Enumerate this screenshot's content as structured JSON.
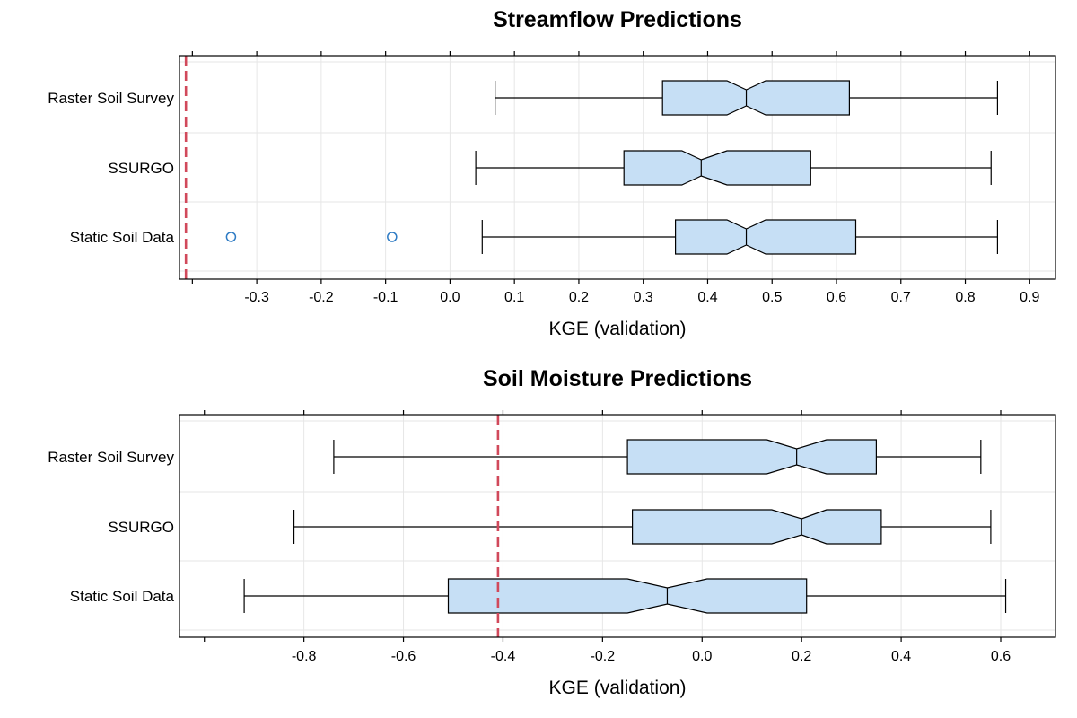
{
  "chart_data": [
    {
      "type": "box",
      "title": "Streamflow Predictions",
      "xlabel": "KGE (validation)",
      "xlim": [
        -0.42,
        0.94
      ],
      "xticks": [
        -0.3,
        -0.2,
        -0.1,
        0.0,
        0.1,
        0.2,
        0.3,
        0.4,
        0.5,
        0.6,
        0.7,
        0.8,
        0.9
      ],
      "xtick_labels": [
        "-0.3",
        "-0.2",
        "-0.1",
        "0.0",
        "0.1",
        "0.2",
        "0.3",
        "0.4",
        "0.5",
        "0.6",
        "0.7",
        "0.8",
        "0.9"
      ],
      "orientation": "horizontal",
      "notched": true,
      "grid": true,
      "reference_line": -0.41,
      "categories": [
        "Raster Soil Survey",
        "SSURGO",
        "Static Soil Data"
      ],
      "boxes": [
        {
          "whisker_low": 0.07,
          "q1": 0.33,
          "notch_low": 0.43,
          "median": 0.46,
          "notch_high": 0.49,
          "q3": 0.62,
          "whisker_high": 0.85,
          "outliers": []
        },
        {
          "whisker_low": 0.04,
          "q1": 0.27,
          "notch_low": 0.36,
          "median": 0.39,
          "notch_high": 0.43,
          "q3": 0.56,
          "whisker_high": 0.84,
          "outliers": []
        },
        {
          "whisker_low": 0.05,
          "q1": 0.35,
          "notch_low": 0.43,
          "median": 0.46,
          "notch_high": 0.49,
          "q3": 0.63,
          "whisker_high": 0.85,
          "outliers": [
            -0.34,
            -0.09
          ]
        }
      ]
    },
    {
      "type": "box",
      "title": "Soil Moisture Predictions",
      "xlabel": "KGE (validation)",
      "xlim": [
        -1.05,
        0.71
      ],
      "xticks": [
        -0.8,
        -0.6,
        -0.4,
        -0.2,
        0.0,
        0.2,
        0.4,
        0.6
      ],
      "xtick_labels": [
        "-0.8",
        "-0.6",
        "-0.4",
        "-0.2",
        "0.0",
        "0.2",
        "0.4",
        "0.6"
      ],
      "orientation": "horizontal",
      "notched": true,
      "grid": true,
      "reference_line": -0.41,
      "categories": [
        "Raster Soil Survey",
        "SSURGO",
        "Static Soil Data"
      ],
      "boxes": [
        {
          "whisker_low": -0.74,
          "q1": -0.15,
          "notch_low": 0.13,
          "median": 0.19,
          "notch_high": 0.25,
          "q3": 0.35,
          "whisker_high": 0.56,
          "outliers": []
        },
        {
          "whisker_low": -0.82,
          "q1": -0.14,
          "notch_low": 0.14,
          "median": 0.2,
          "notch_high": 0.25,
          "q3": 0.36,
          "whisker_high": 0.58,
          "outliers": []
        },
        {
          "whisker_low": -0.92,
          "q1": -0.51,
          "notch_low": -0.15,
          "median": -0.07,
          "notch_high": 0.01,
          "q3": 0.21,
          "whisker_high": 0.61,
          "outliers": []
        }
      ]
    }
  ],
  "colors": {
    "box_fill": "#c6dff5",
    "box_stroke": "#000000",
    "outlier": "#2e7bc4",
    "reference_line": "#d1495b",
    "grid": "#e6e6e6",
    "frame": "#000000"
  }
}
